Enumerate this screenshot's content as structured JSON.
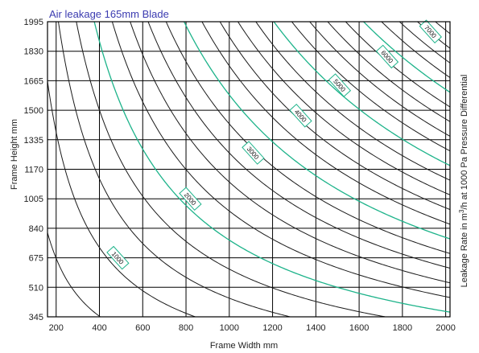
{
  "chart_data": {
    "type": "contour",
    "title": "Air leakage 165mm Blade",
    "xlabel": "Frame Width mm",
    "ylabel": "Frame Height mm",
    "right_label_parts": [
      "Leakage Rate in m",
      "3",
      "/h at 1000 Pa Pressure Differential"
    ],
    "xlim": [
      160,
      2020
    ],
    "ylim": [
      345,
      1995
    ],
    "x_ticks": [
      200,
      400,
      600,
      800,
      1000,
      1200,
      1400,
      1600,
      1800,
      2000
    ],
    "y_ticks": [
      345,
      510,
      675,
      840,
      1005,
      1170,
      1335,
      1500,
      1665,
      1830,
      1995
    ],
    "contour_step": 200,
    "contour_max": 7400,
    "major_step": 1000,
    "labeled_contours": [
      {
        "label": "1000",
        "x": 485,
        "y": 675
      },
      {
        "label": "2000",
        "x": 820,
        "y": 1005
      },
      {
        "label": "3000",
        "x": 1110,
        "y": 1262
      },
      {
        "label": "4000",
        "x": 1330,
        "y": 1470
      },
      {
        "label": "5000",
        "x": 1510,
        "y": 1640
      },
      {
        "label": "6000",
        "x": 1730,
        "y": 1800
      },
      {
        "label": "7000",
        "x": 1930,
        "y": 1940
      }
    ],
    "grid": true,
    "colors": {
      "minor": "#1a1a1a",
      "major": "#1db38a",
      "title": "#3b3bb0"
    }
  }
}
